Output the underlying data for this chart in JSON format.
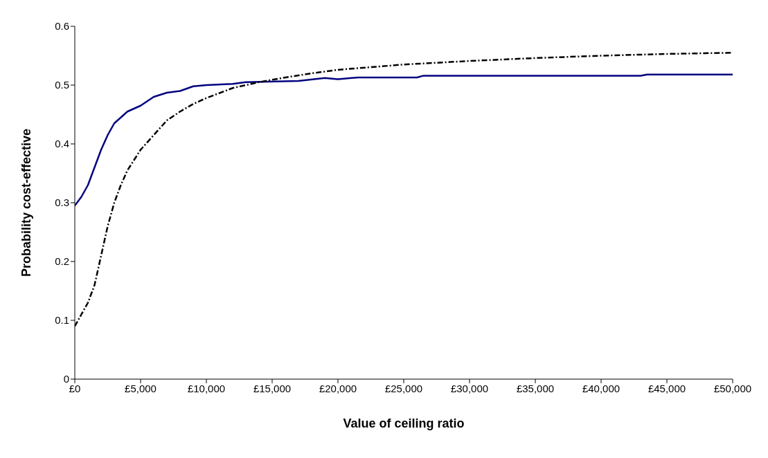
{
  "chart_data": {
    "type": "line",
    "xlabel": "Value of ceiling ratio",
    "ylabel": "Probability cost-effective",
    "xlim": [
      0,
      50000
    ],
    "xticks": [
      {
        "value": 0,
        "label": "£0"
      },
      {
        "value": 5000,
        "label": "£5,000"
      },
      {
        "value": 10000,
        "label": "£10,000"
      },
      {
        "value": 15000,
        "label": "£15,000"
      },
      {
        "value": 20000,
        "label": "£20,000"
      },
      {
        "value": 25000,
        "label": "£25,000"
      },
      {
        "value": 30000,
        "label": "£30,000"
      },
      {
        "value": 35000,
        "label": "£35,000"
      },
      {
        "value": 40000,
        "label": "£40,000"
      },
      {
        "value": 45000,
        "label": "£45,000"
      },
      {
        "value": 50000,
        "label": "£50,000"
      }
    ],
    "ylim": [
      0,
      0.6
    ],
    "yticks": [
      0,
      0.1,
      0.2,
      0.3,
      0.4,
      0.5,
      0.6
    ],
    "grid": false,
    "marker": "none",
    "series": [
      {
        "color": "#000080",
        "line_style": "solid",
        "x": [
          0,
          500,
          1000,
          1500,
          2000,
          2500,
          3000,
          3500,
          4000,
          5000,
          6000,
          7000,
          8000,
          9000,
          10000,
          12000,
          13000,
          17000,
          19000,
          20000,
          21500,
          26000,
          26500,
          43000,
          43500,
          50000
        ],
        "values": [
          0.295,
          0.31,
          0.33,
          0.36,
          0.39,
          0.415,
          0.435,
          0.445,
          0.455,
          0.465,
          0.48,
          0.487,
          0.49,
          0.498,
          0.5,
          0.502,
          0.505,
          0.507,
          0.512,
          0.51,
          0.513,
          0.513,
          0.516,
          0.516,
          0.518,
          0.518
        ]
      },
      {
        "color": "#000000",
        "line_style": "dashed",
        "x": [
          0,
          500,
          1000,
          1500,
          2000,
          2500,
          3000,
          3500,
          4000,
          5000,
          6000,
          7000,
          8000,
          9000,
          10000,
          12000,
          14000,
          16000,
          18000,
          20000,
          25000,
          30000,
          35000,
          40000,
          45000,
          50000
        ],
        "values": [
          0.09,
          0.11,
          0.13,
          0.16,
          0.21,
          0.26,
          0.3,
          0.33,
          0.355,
          0.39,
          0.415,
          0.44,
          0.455,
          0.468,
          0.478,
          0.495,
          0.505,
          0.513,
          0.52,
          0.526,
          0.535,
          0.541,
          0.546,
          0.55,
          0.553,
          0.555
        ]
      }
    ]
  }
}
